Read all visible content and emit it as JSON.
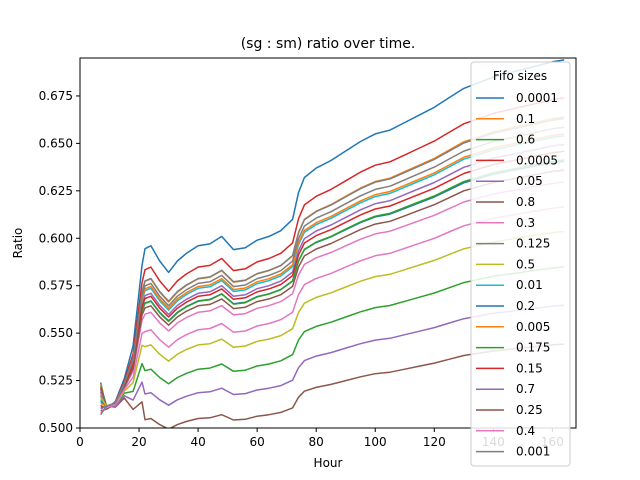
{
  "chart_data": {
    "type": "line",
    "title": "(sg : sm) ratio over time.",
    "xlabel": "Hour",
    "ylabel": "Ratio",
    "xlim": [
      0,
      168
    ],
    "ylim": [
      0.5,
      0.695
    ],
    "xticks": [
      0,
      20,
      40,
      60,
      80,
      100,
      120,
      140,
      160
    ],
    "yticks": [
      0.5,
      0.525,
      0.55,
      0.575,
      0.6,
      0.625,
      0.65,
      0.675
    ],
    "ytick_labels": [
      "0.500",
      "0.525",
      "0.550",
      "0.575",
      "0.600",
      "0.625",
      "0.650",
      "0.675"
    ],
    "legend_title": "Fifo sizes",
    "legend_position": "right",
    "grid": false,
    "x": [
      7,
      9,
      12,
      15,
      18,
      21,
      22,
      24,
      27,
      30,
      33,
      36,
      40,
      44,
      48,
      52,
      56,
      60,
      64,
      68,
      72,
      74,
      76,
      80,
      85,
      90,
      95,
      100,
      105,
      110,
      115,
      120,
      125,
      130,
      135,
      140,
      145,
      150,
      155,
      160,
      164
    ],
    "base": [
      0.0,
      0.0,
      0.005,
      0.017,
      0.032,
      0.072,
      0.0785,
      0.08,
      0.072,
      0.066,
      0.072,
      0.076,
      0.08,
      0.081,
      0.085,
      0.078,
      0.079,
      0.083,
      0.085,
      0.088,
      0.094,
      0.108,
      0.116,
      0.121,
      0.125,
      0.13,
      0.135,
      0.139,
      0.141,
      0.145,
      0.149,
      0.153,
      0.158,
      0.163,
      0.166,
      0.169,
      0.171,
      0.173,
      0.175,
      0.177,
      0.178
    ],
    "start_values": [
      0.524,
      0.523,
      0.522,
      0.521,
      0.52,
      0.519,
      0.518,
      0.517,
      0.516,
      0.515,
      0.514,
      0.513,
      0.512,
      0.511,
      0.51,
      0.509,
      0.508,
      0.507
    ],
    "series": [
      {
        "name": "0.0001",
        "color": "#1f77b4",
        "offset": 0.007,
        "scale": 1.0,
        "upto": 164
      },
      {
        "name": "0.1",
        "color": "#ff7f0e",
        "offset": 0.0,
        "scale": 0.87,
        "upto": 164
      },
      {
        "name": "0.6",
        "color": "#2ca02c",
        "offset": -0.022,
        "scale": 0.55,
        "upto": 164
      },
      {
        "name": "0.0005",
        "color": "#d62728",
        "offset": 0.003,
        "scale": 0.91,
        "upto": 164
      },
      {
        "name": "0.05",
        "color": "#9467bd",
        "offset": -0.002,
        "scale": 0.8,
        "upto": 164
      },
      {
        "name": "0.8",
        "color": "#8c564b",
        "offset": -0.036,
        "scale": 0.4,
        "upto": 164
      },
      {
        "name": "0.3",
        "color": "#e377c2",
        "offset": -0.004,
        "scale": 0.7,
        "upto": 164
      },
      {
        "name": "0.125",
        "color": "#7f7f7f",
        "offset": 0.001,
        "scale": 0.86,
        "upto": 164
      },
      {
        "name": "0.5",
        "color": "#bcbd22",
        "offset": -0.014,
        "scale": 0.61,
        "upto": 164
      },
      {
        "name": "0.01",
        "color": "#17becf",
        "offset": -0.001,
        "scale": 0.82,
        "upto": 164
      },
      {
        "name": "0.2",
        "color": "#1f77b4",
        "offset": -0.002,
        "scale": 0.75,
        "upto": 164
      },
      {
        "name": "0.005",
        "color": "#ff7f0e",
        "offset": 0.0,
        "scale": 0.82,
        "upto": 164
      },
      {
        "name": "0.175",
        "color": "#2ca02c",
        "offset": -0.003,
        "scale": 0.76,
        "upto": 164
      },
      {
        "name": "0.15",
        "color": "#d62728",
        "offset": -0.002,
        "scale": 0.78,
        "upto": 164
      },
      {
        "name": "0.7",
        "color": "#9467bd",
        "offset": -0.028,
        "scale": 0.47,
        "upto": 164
      },
      {
        "name": "0.25",
        "color": "#8c564b",
        "offset": -0.003,
        "scale": 0.73,
        "upto": 164
      },
      {
        "name": "0.4",
        "color": "#e377c2",
        "offset": -0.01,
        "scale": 0.66,
        "upto": 164
      },
      {
        "name": "0.001",
        "color": "#7f7f7f",
        "offset": 0.0,
        "scale": 0.84,
        "upto": 164
      }
    ]
  }
}
